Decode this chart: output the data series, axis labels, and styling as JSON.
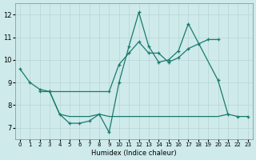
{
  "xlabel": "Humidex (Indice chaleur)",
  "background_color": "#ceeaea",
  "grid_color": "#b8d4d4",
  "line_color": "#1a7a6e",
  "x_values": [
    0,
    1,
    2,
    3,
    4,
    5,
    6,
    7,
    8,
    9,
    10,
    11,
    12,
    13,
    14,
    15,
    16,
    17,
    18,
    19,
    20,
    21,
    22,
    23
  ],
  "line1": [
    9.6,
    9.0,
    8.7,
    8.6,
    7.6,
    7.2,
    7.2,
    7.3,
    7.6,
    6.8,
    9.0,
    10.6,
    12.1,
    10.6,
    9.9,
    10.0,
    10.4,
    11.6,
    null,
    null,
    9.1,
    7.6,
    7.5,
    7.5
  ],
  "line2": [
    null,
    null,
    8.6,
    8.6,
    null,
    null,
    null,
    null,
    null,
    8.6,
    9.8,
    10.3,
    10.8,
    10.3,
    10.3,
    9.9,
    10.1,
    10.5,
    10.7,
    10.9,
    10.9,
    null,
    null,
    null
  ],
  "line3": [
    null,
    null,
    null,
    8.6,
    7.6,
    7.5,
    7.5,
    7.5,
    7.6,
    7.5,
    7.5,
    7.5,
    7.5,
    7.5,
    7.5,
    7.5,
    7.5,
    7.5,
    7.5,
    7.5,
    7.5,
    7.6,
    null,
    null
  ],
  "ylim": [
    6.5,
    12.5
  ],
  "yticks": [
    7,
    8,
    9,
    10,
    11,
    12
  ],
  "xlim": [
    -0.5,
    23.5
  ]
}
